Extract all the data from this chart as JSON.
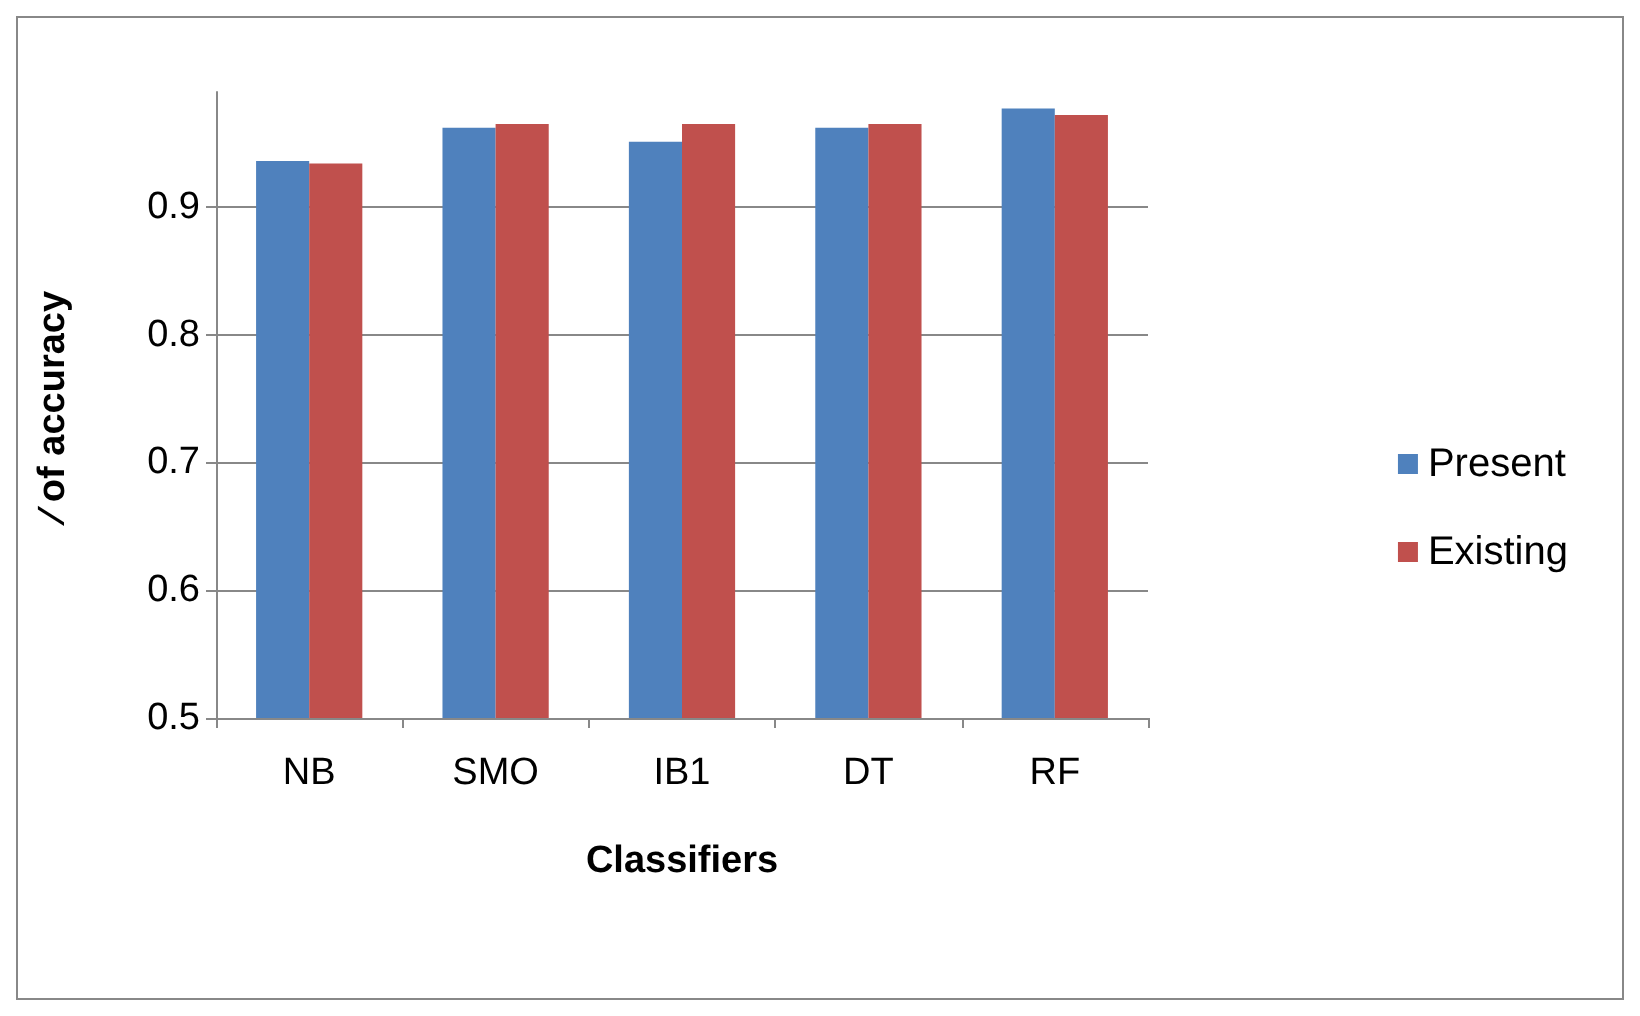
{
  "chart_data": {
    "type": "bar",
    "xlabel": "Classifiers",
    "ylabel": "⁄ of accuracy",
    "categories": [
      "NB",
      "SMO",
      "IB1",
      "DT",
      "RF"
    ],
    "series": [
      {
        "name": "Present",
        "color": "#4f81bd",
        "values": [
          0.936,
          0.962,
          0.951,
          0.962,
          0.977
        ]
      },
      {
        "name": "Existing",
        "color": "#c0504d",
        "values": [
          0.934,
          0.965,
          0.965,
          0.965,
          0.972
        ]
      }
    ],
    "ylim": [
      0.5,
      0.99
    ],
    "yticks": [
      0.5,
      0.6,
      0.7,
      0.8,
      0.9
    ],
    "grid": "y",
    "legend": "right"
  }
}
